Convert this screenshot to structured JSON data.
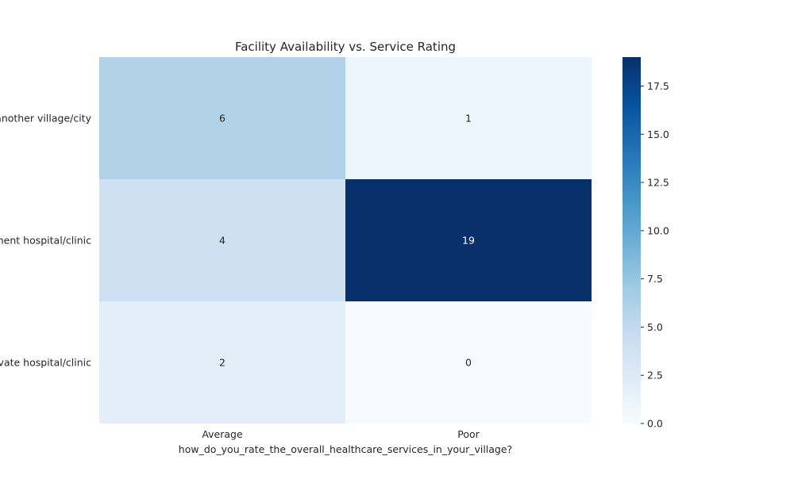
{
  "chart_data": {
    "type": "heatmap",
    "title": "Facility Availability vs. Service Rating",
    "xlabel": "how_do_you_rate_the_overall_healthcare_services_in_your_village?",
    "ylabel": "",
    "columns": [
      "Average",
      "Poor"
    ],
    "rows": [
      "another village/city",
      "ment hospital/clinic",
      "ivate hospital/clinic"
    ],
    "values": [
      [
        6,
        1
      ],
      [
        4,
        19
      ],
      [
        2,
        0
      ]
    ],
    "colorbar": {
      "min": 0,
      "max": 19,
      "ticks": [
        0.0,
        2.5,
        5.0,
        7.5,
        10.0,
        12.5,
        15.0,
        17.5
      ],
      "tick_labels": [
        "0.0",
        "2.5",
        "5.0",
        "7.5",
        "10.0",
        "12.5",
        "15.0",
        "17.5"
      ],
      "colormap": [
        "#f7fbff",
        "#deebf7",
        "#c6dbef",
        "#9ecae1",
        "#6baed6",
        "#4292c6",
        "#2171b5",
        "#08519c",
        "#08306b"
      ]
    },
    "annotation_light_color": "#ffffff",
    "annotation_dark_color": "#262626"
  }
}
